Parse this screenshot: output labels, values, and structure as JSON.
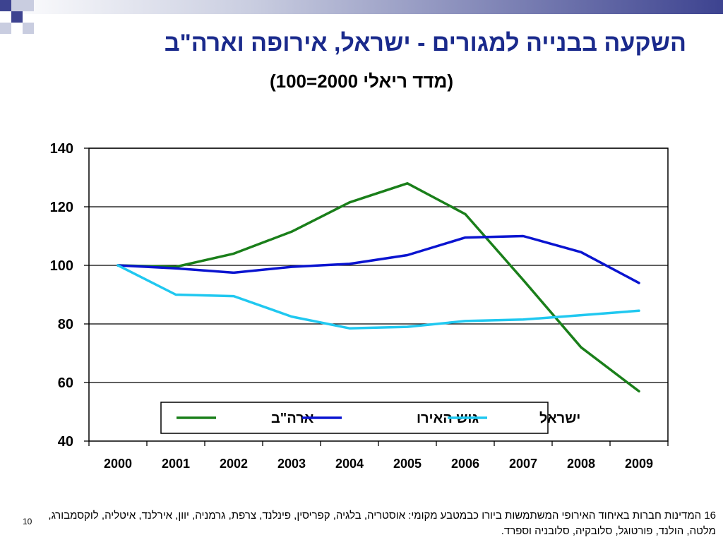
{
  "slide": {
    "title": "השקעה בבנייה למגורים -  ישראל, אירופה וארה\"ב",
    "subtitle": "(מדד ריאלי 2000=100)",
    "footnote": "16 המדינות חברות באיחוד האירופי המשתמשות ביורו כבמטבע מקומי: אוסטריה, בלגיה, קפריסין, פינלנד, צרפת, גרמניה, יוון, אירלנד, איטליה, לוקסמבורג, מלטה, הולנד, פורטוגל, סלובקיה, סלובניה וספרד.",
    "slide_number": "10"
  },
  "colors": {
    "title": "#1a2a8c",
    "deco_dark": "#3d4390",
    "deco_light": "#c9cde0"
  },
  "chart_data": {
    "type": "line",
    "title": "",
    "xlabel": "",
    "ylabel": "",
    "x": [
      "2000",
      "2001",
      "2002",
      "2003",
      "2004",
      "2005",
      "2006",
      "2007",
      "2008",
      "2009"
    ],
    "ylim": [
      40,
      140
    ],
    "yticks": [
      40,
      60,
      80,
      100,
      120,
      140
    ],
    "grid": true,
    "legend_placement": "bottom-center",
    "series": [
      {
        "name": "ארה\"ב",
        "color": "#1a7f1a",
        "values": [
          100,
          99.5,
          104,
          111.5,
          121.5,
          128,
          117.5,
          95,
          72,
          57
        ]
      },
      {
        "name": "גוש האירו",
        "color": "#0a14d0",
        "values": [
          100,
          99,
          97.5,
          99.5,
          100.5,
          103.5,
          109.5,
          110,
          104.5,
          94
        ]
      },
      {
        "name": "ישראל",
        "color": "#20c8f0",
        "values": [
          100,
          90,
          89.5,
          82.5,
          78.5,
          79,
          81,
          81.5,
          83,
          84.5
        ]
      }
    ]
  }
}
